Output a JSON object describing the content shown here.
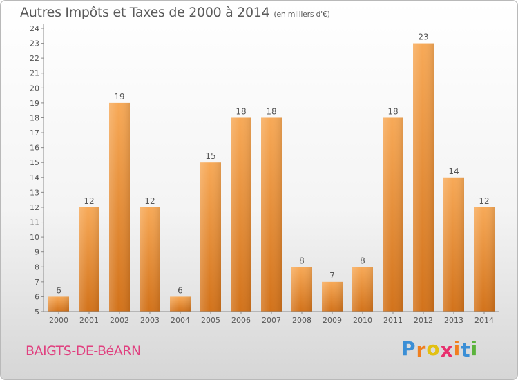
{
  "header": {
    "title": "Autres Impôts et Taxes de 2000 à 2014",
    "unit": "(en milliers d'€)"
  },
  "footer": {
    "commune": "BAIGTS-DE-BéARN",
    "logo_letters": [
      "P",
      "r",
      "o",
      "x",
      "i",
      "t",
      "i"
    ],
    "logo_colors": [
      "#3b8fd6",
      "#f07f1f",
      "#e2c012",
      "#e8306e",
      "#f07f1f",
      "#3b8fd6",
      "#5bb33c"
    ]
  },
  "colors": {
    "bar": "#f0902e",
    "bar_light": "#f7a957",
    "bar_dark": "#d2721a",
    "commune": "#e0407f",
    "text": "#555555"
  },
  "chart_data": {
    "type": "bar",
    "title": "Autres Impôts et Taxes de 2000 à 2014",
    "subtitle": "(en milliers d'€)",
    "categories": [
      "2000",
      "2001",
      "2002",
      "2003",
      "2004",
      "2005",
      "2006",
      "2007",
      "2008",
      "2009",
      "2010",
      "2011",
      "2012",
      "2013",
      "2014"
    ],
    "values": [
      6,
      12,
      19,
      12,
      6,
      15,
      18,
      18,
      8,
      7,
      8,
      18,
      23,
      14,
      12
    ],
    "ylim": [
      5,
      24
    ],
    "yticks": [
      5,
      6,
      7,
      8,
      9,
      10,
      11,
      12,
      13,
      14,
      15,
      16,
      17,
      18,
      19,
      20,
      21,
      22,
      23,
      24
    ],
    "grid": false,
    "data_labels": true
  }
}
